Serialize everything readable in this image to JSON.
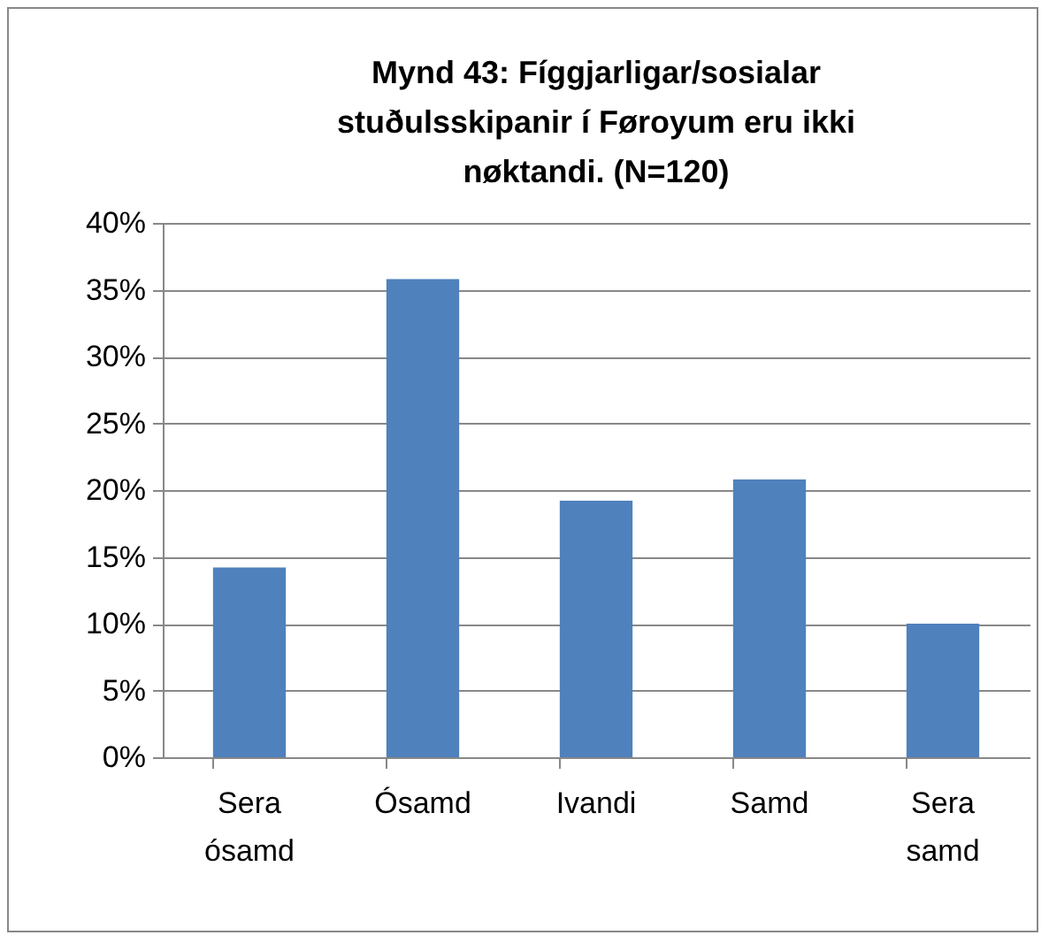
{
  "chart_data": {
    "type": "bar",
    "title": "Mynd 43: Fíggjarligar/sosialar stuðulsskipanir í Føroyum eru ikki nøktandi. (N=120)",
    "categories": [
      "Sera ósamd",
      "Ósamd",
      "Ivandi",
      "Samd",
      "Sera samd"
    ],
    "values": [
      14.2,
      35.8,
      19.2,
      20.8,
      10.0
    ],
    "color": "#4f81bd",
    "ylim": [
      0,
      40
    ],
    "yticks": [
      {
        "value": 0,
        "label": "0%"
      },
      {
        "value": 5,
        "label": "5%"
      },
      {
        "value": 10,
        "label": "10%"
      },
      {
        "value": 15,
        "label": "15%"
      },
      {
        "value": 20,
        "label": "20%"
      },
      {
        "value": 25,
        "label": "25%"
      },
      {
        "value": 30,
        "label": "30%"
      },
      {
        "value": 35,
        "label": "35%"
      },
      {
        "value": 40,
        "label": "40%"
      }
    ],
    "grid": "y"
  }
}
